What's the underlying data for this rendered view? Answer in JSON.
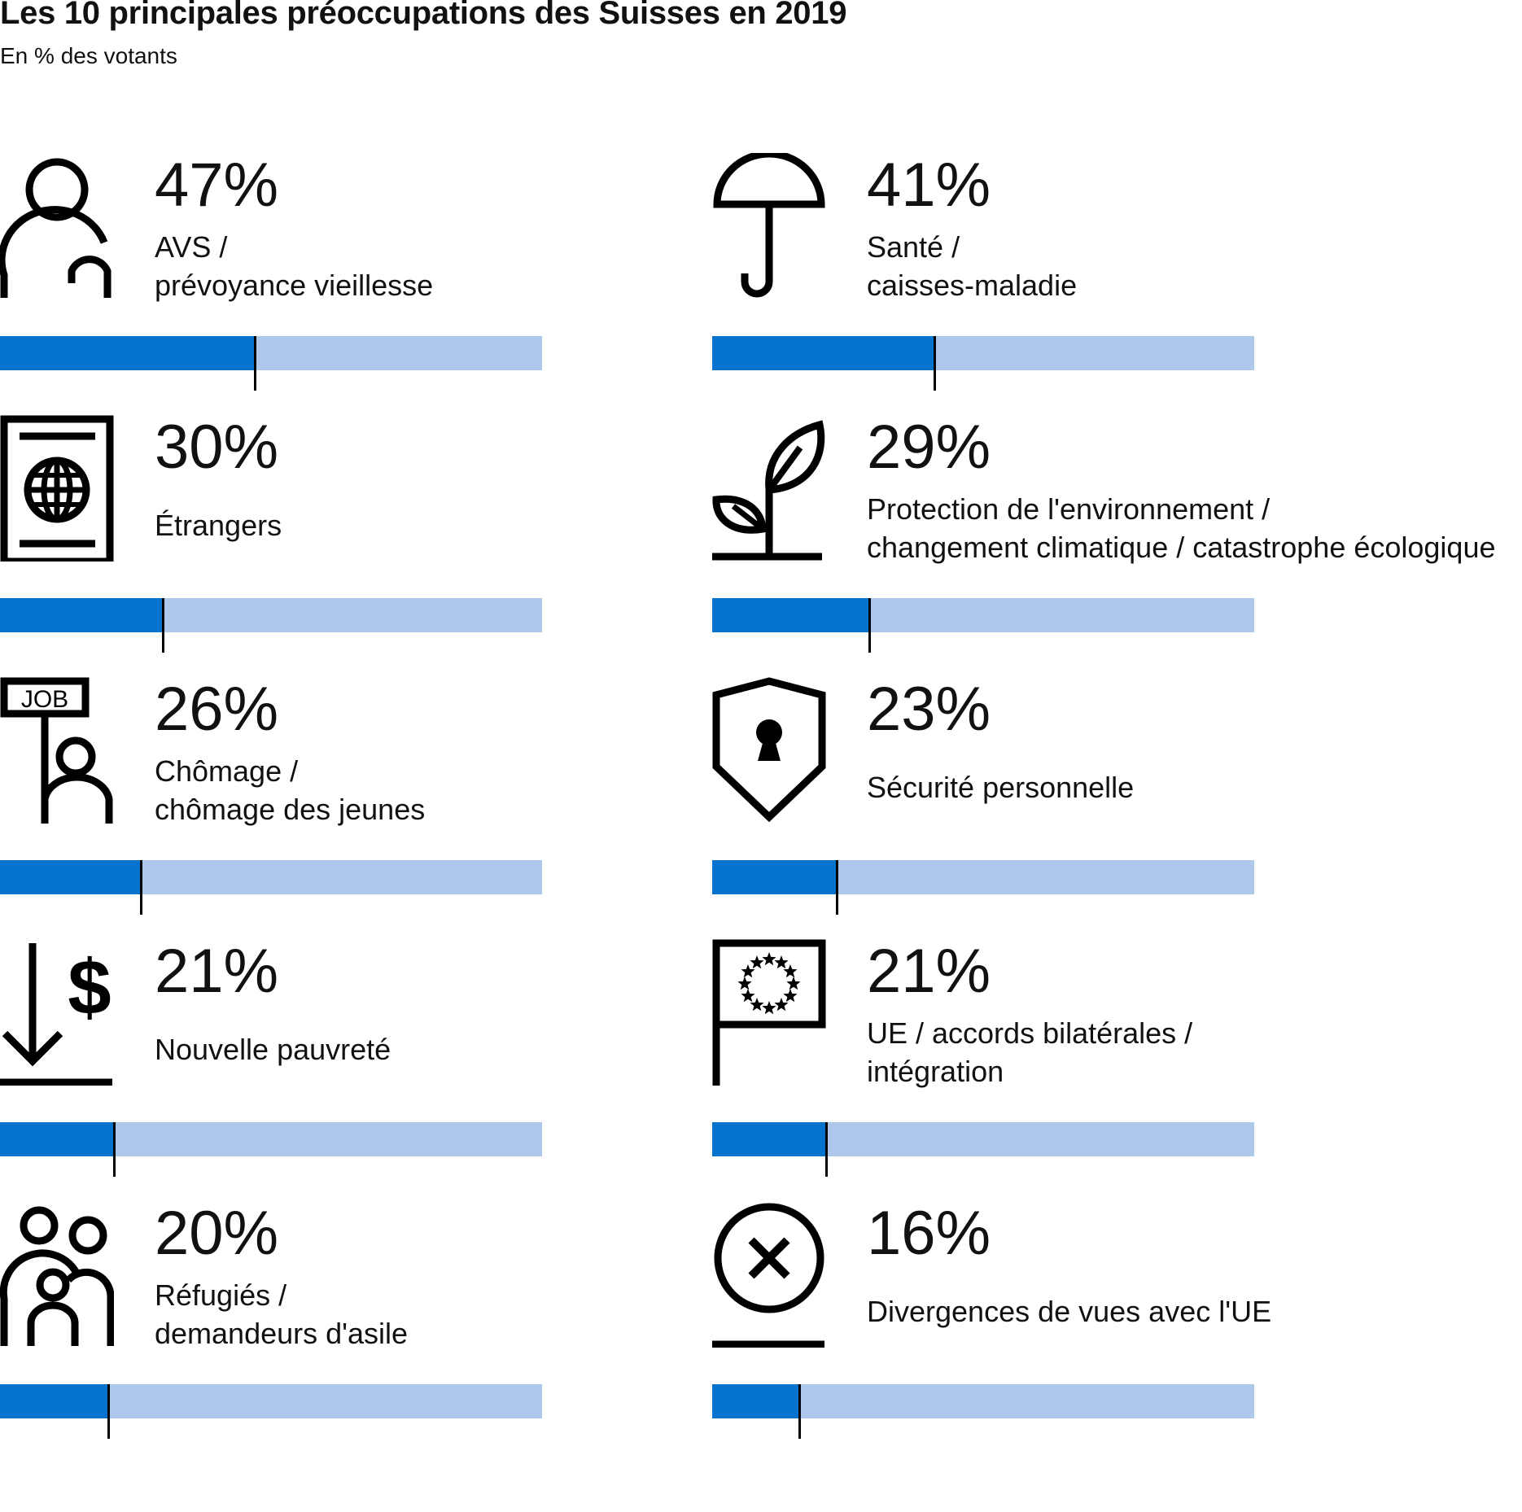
{
  "title": "Les 10 principales préoccupations des Suisses en 2019",
  "subtitle": "En % des votants",
  "colors": {
    "fill": "#0572ce",
    "track": "#adc8ea",
    "ink": "#000000"
  },
  "chart_data": {
    "type": "bar",
    "title": "Les 10 principales préoccupations des Suisses en 2019",
    "subtitle": "En % des votants",
    "unit": "%",
    "ylim": [
      0,
      100
    ],
    "items": [
      {
        "value": 47,
        "value_label": "47%",
        "label_lines": [
          "AVS /",
          "prévoyance vieillesse"
        ],
        "icon": "elderly-person-icon"
      },
      {
        "value": 41,
        "value_label": "41%",
        "label_lines": [
          "Santé /",
          "caisses-maladie"
        ],
        "icon": "umbrella-icon"
      },
      {
        "value": 30,
        "value_label": "30%",
        "label_lines": [
          "Étrangers"
        ],
        "icon": "passport-icon"
      },
      {
        "value": 29,
        "value_label": "29%",
        "label_lines": [
          "Protection de l'environnement /",
          "changement climatique / catastrophe écologique"
        ],
        "icon": "plant-icon"
      },
      {
        "value": 26,
        "value_label": "26%",
        "label_lines": [
          "Chômage /",
          "chômage des jeunes"
        ],
        "icon": "job-sign-icon",
        "icon_text": "JOB"
      },
      {
        "value": 23,
        "value_label": "23%",
        "label_lines": [
          "Sécurité personnelle"
        ],
        "icon": "shield-lock-icon"
      },
      {
        "value": 21,
        "value_label": "21%",
        "label_lines": [
          "Nouvelle pauvreté"
        ],
        "icon": "dollar-down-icon",
        "icon_text": "$"
      },
      {
        "value": 21,
        "value_label": "21%",
        "label_lines": [
          "UE / accords bilatérales /",
          "intégration"
        ],
        "icon": "eu-flag-icon"
      },
      {
        "value": 20,
        "value_label": "20%",
        "label_lines": [
          "Réfugiés /",
          "demandeurs d'asile"
        ],
        "icon": "refugees-family-icon"
      },
      {
        "value": 16,
        "value_label": "16%",
        "label_lines": [
          "Divergences de vues avec l'UE"
        ],
        "icon": "x-circle-icon"
      }
    ]
  }
}
